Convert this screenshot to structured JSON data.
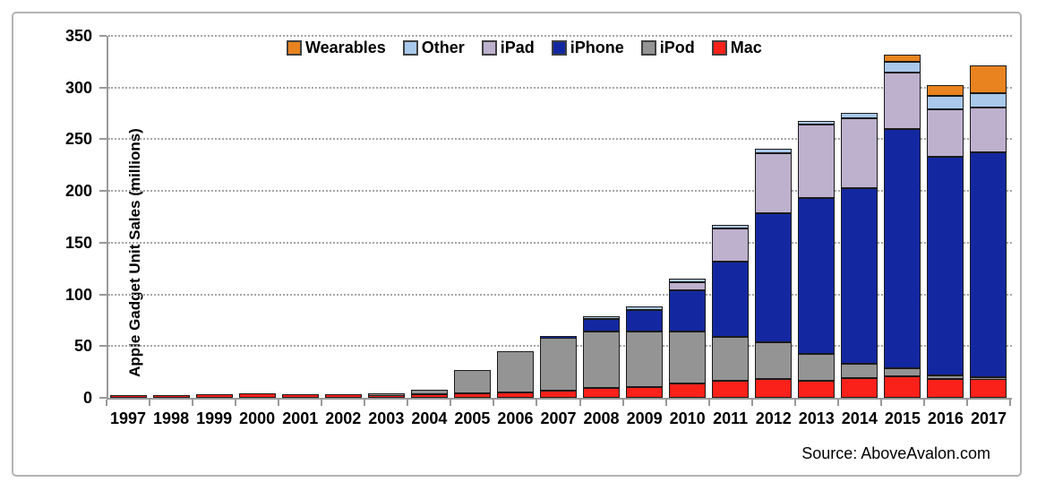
{
  "chart_data": {
    "type": "bar",
    "stacked": true,
    "title": "",
    "xlabel": "",
    "ylabel": "Apple Gadget Unit Sales (millions)",
    "ylim": [
      0,
      350
    ],
    "yticks": [
      0,
      50,
      100,
      150,
      200,
      250,
      300,
      350
    ],
    "grid": "horizontal-dotted",
    "legend_position": "top",
    "legend_order": [
      "Wearables",
      "Other",
      "iPad",
      "iPhone",
      "iPod",
      "Mac"
    ],
    "categories": [
      "1997",
      "1998",
      "1999",
      "2000",
      "2001",
      "2002",
      "2003",
      "2004",
      "2005",
      "2006",
      "2007",
      "2008",
      "2009",
      "2010",
      "2011",
      "2012",
      "2013",
      "2014",
      "2015",
      "2016",
      "2017"
    ],
    "series": [
      {
        "name": "Mac",
        "color": "#f9211a",
        "values": [
          2.9,
          2.7,
          3.4,
          4.6,
          3.1,
          3.1,
          3.0,
          3.3,
          4.5,
          5.3,
          7.1,
          9.7,
          10.4,
          13.7,
          16.7,
          18.2,
          16.3,
          18.9,
          20.6,
          18.5,
          19.2
        ]
      },
      {
        "name": "iPod",
        "color": "#949494",
        "values": [
          0,
          0,
          0,
          0,
          0,
          0,
          0.9,
          4.4,
          22.5,
          39.4,
          51.6,
          54.8,
          54.1,
          50.3,
          42.6,
          35.2,
          26.4,
          14.4,
          8.0,
          3.0,
          1.0
        ]
      },
      {
        "name": "iPhone",
        "color": "#1328a0",
        "values": [
          0,
          0,
          0,
          0,
          0,
          0,
          0,
          0,
          0,
          0,
          1.4,
          11.6,
          20.7,
          40.0,
          72.3,
          125.0,
          150.3,
          169.2,
          231.2,
          211.9,
          216.8
        ]
      },
      {
        "name": "iPad",
        "color": "#bdb1ce",
        "values": [
          0,
          0,
          0,
          0,
          0,
          0,
          0,
          0,
          0,
          0,
          0,
          0,
          0,
          7.5,
          32.4,
          58.3,
          71.0,
          67.9,
          54.9,
          45.6,
          43.8
        ]
      },
      {
        "name": "Other",
        "color": "#a9c8ea",
        "values": [
          0,
          0,
          0,
          0,
          0,
          0,
          0,
          0,
          0,
          0,
          0,
          2.5,
          3.0,
          3.5,
          3.5,
          4.0,
          4.0,
          5.0,
          10.0,
          13.0,
          14.0
        ]
      },
      {
        "name": "Wearables",
        "color": "#e8831f",
        "values": [
          0,
          0,
          0,
          0,
          0,
          0,
          0,
          0,
          0,
          0,
          0,
          0,
          0,
          0,
          0,
          0,
          0,
          0,
          7.0,
          10.0,
          27.0
        ]
      }
    ]
  },
  "source": {
    "text": "Source: AboveAvalon.com"
  },
  "colors": {
    "axis": "#999999",
    "grid": "#a6a6a6",
    "segment_border": "#1a1a1a",
    "frame_border": "#b3b3b3",
    "text": "#000000"
  }
}
